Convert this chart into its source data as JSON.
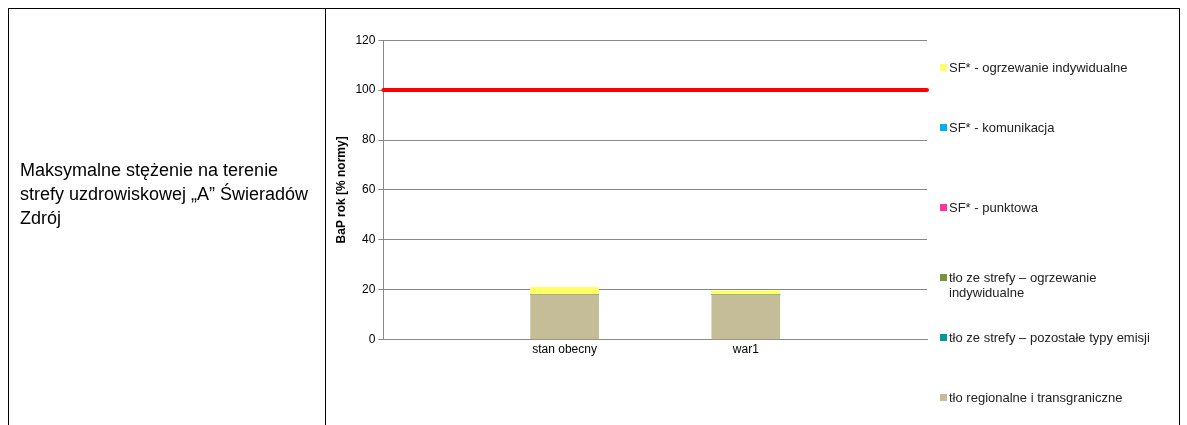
{
  "chart_data": {
    "type": "bar",
    "stacked": true,
    "ylabel": "BaP rok [% normy]",
    "categories": [
      null,
      "stan obecny",
      "war1",
      null
    ],
    "series": [
      {
        "name": "tło regionalne i transgraniczne",
        "color": "#c4bd97",
        "values": [
          null,
          18,
          18,
          null
        ]
      },
      {
        "name": "tło ze strefy – pozostałe typy emisji",
        "color": "#009999",
        "values": [
          null,
          0,
          0,
          null
        ]
      },
      {
        "name": "tło ze strefy – ogrzewanie indywidualne",
        "color": "#77933c",
        "values": [
          null,
          0,
          0,
          null
        ]
      },
      {
        "name": "SF* - punktowa",
        "color": "#ff3399",
        "values": [
          null,
          0,
          0,
          null
        ]
      },
      {
        "name": "SF* - komunikacja",
        "color": "#00b0f0",
        "values": [
          null,
          0,
          0,
          null
        ]
      },
      {
        "name": "SF* - ogrzewanie indywidualne",
        "color": "#ffff66",
        "values": [
          null,
          3,
          1.5,
          null
        ]
      }
    ],
    "ylim": [
      0,
      120
    ],
    "yticks": [
      0,
      20,
      40,
      60,
      80,
      100,
      120
    ],
    "grid": "y",
    "legend": "right",
    "ref_lines": [
      {
        "axis": "y",
        "value": 100,
        "color": "#ff0000"
      }
    ],
    "annotations": [
      "Maksymalne stężenie na terenie strefy uzdrowiskowej „A” Świeradów Zdrój"
    ]
  }
}
